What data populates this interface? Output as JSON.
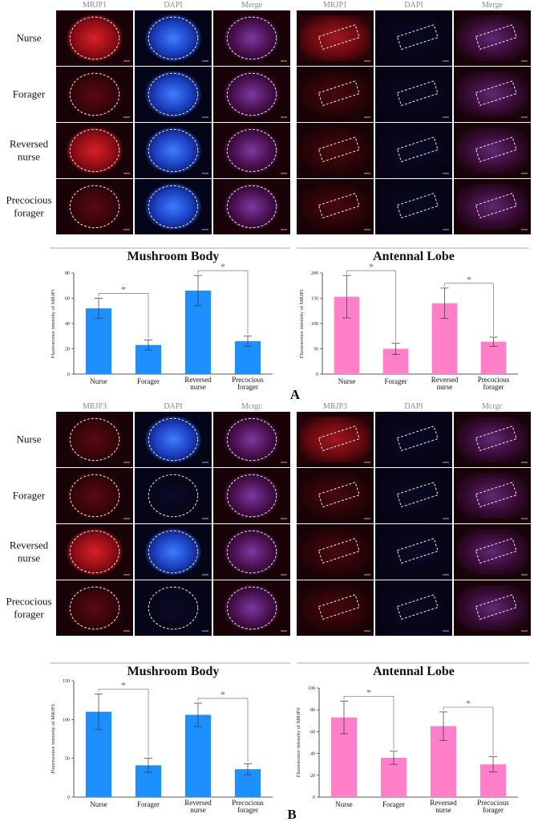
{
  "panel_labels": [
    "A",
    "B"
  ],
  "groups": [
    "Nurse",
    "Forager",
    "Reversed nurse",
    "Precocious forager"
  ],
  "colors": {
    "mushroom_bar": "#1e8fff",
    "antennal_bar": "#ff7fc8",
    "mrjp_red": "#c8141e",
    "dapi_blue": "#2a6cff"
  },
  "figure_A": {
    "channel_headers": [
      "MRJP1",
      "DAPI",
      "Merge"
    ],
    "region_titles": [
      "Mushroom Body",
      "Antennal Lobe"
    ]
  },
  "figure_B": {
    "channel_headers": [
      "MRJP3",
      "DAPI",
      "Mcrgc"
    ],
    "region_titles": [
      "Mushroom Body",
      "Antennal Lobe"
    ]
  },
  "chart_data": [
    {
      "type": "bar",
      "title": "Mushroom Body",
      "ylabel": "Fluorescence intensity of MRJP1",
      "categories": [
        "Nurse",
        "Forager",
        "Reversed nurse",
        "Precocious forager"
      ],
      "values": [
        52,
        23,
        66,
        26
      ],
      "errors": [
        8,
        4,
        12,
        4
      ],
      "ylim": [
        0,
        80
      ],
      "yticks": [
        0,
        20,
        40,
        60,
        80
      ],
      "significance": [
        [
          "Nurse",
          "Forager",
          "*"
        ],
        [
          "Reversed nurse",
          "Precocious forager",
          "*"
        ]
      ]
    },
    {
      "type": "bar",
      "title": "Antennal Lobe",
      "ylabel": "Fluorescence intensity of MRJP1",
      "categories": [
        "Nurse",
        "Forager",
        "Reversed nurse",
        "Precocious forager"
      ],
      "values": [
        153,
        50,
        140,
        64
      ],
      "errors": [
        42,
        11,
        30,
        9
      ],
      "ylim": [
        0,
        200
      ],
      "yticks": [
        0,
        50,
        100,
        150,
        200
      ],
      "significance": [
        [
          "Nurse",
          "Forager",
          "*"
        ],
        [
          "Reversed nurse",
          "Precocious forager",
          "*"
        ]
      ]
    },
    {
      "type": "bar",
      "title": "Mushroom Body",
      "ylabel": "Fluorescence intensity of MRJP3",
      "categories": [
        "Nurse",
        "Forager",
        "Reversed nurse",
        "Precocious forager"
      ],
      "values": [
        110,
        41,
        106,
        36
      ],
      "errors": [
        23,
        9,
        15,
        7
      ],
      "ylim": [
        0,
        150
      ],
      "yticks": [
        0,
        50,
        100,
        150
      ],
      "significance": [
        [
          "Nurse",
          "Forager",
          "*"
        ],
        [
          "Reversed nurse",
          "Precocious forager",
          "*"
        ]
      ]
    },
    {
      "type": "bar",
      "title": "Antennal Lobe",
      "ylabel": "Fluorescence intensity of MRJP3",
      "categories": [
        "Nurse",
        "Forager",
        "Reversed nurse",
        "Precocious forager"
      ],
      "values": [
        73,
        36,
        65,
        30
      ],
      "errors": [
        15,
        6,
        13,
        7
      ],
      "ylim": [
        0,
        100
      ],
      "yticks": [
        0,
        20,
        40,
        60,
        80,
        100
      ],
      "significance": [
        [
          "Nurse",
          "Forager",
          "*"
        ],
        [
          "Reversed nurse",
          "Precocious forager",
          "*"
        ]
      ]
    }
  ]
}
